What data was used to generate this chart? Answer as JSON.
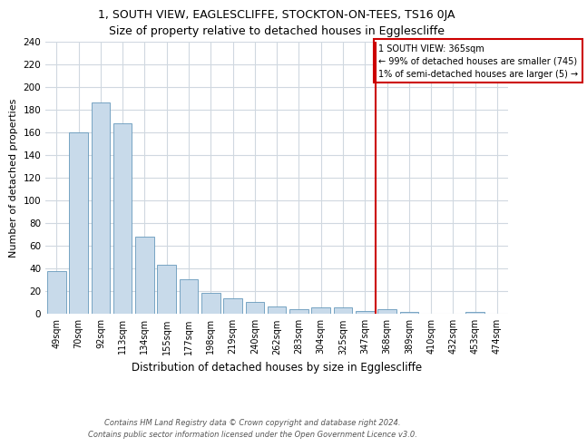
{
  "title1": "1, SOUTH VIEW, EAGLESCLIFFE, STOCKTON-ON-TEES, TS16 0JA",
  "title2": "Size of property relative to detached houses in Egglescliffe",
  "xlabel": "Distribution of detached houses by size in Egglescliffe",
  "ylabel": "Number of detached properties",
  "categories": [
    "49sqm",
    "70sqm",
    "92sqm",
    "113sqm",
    "134sqm",
    "155sqm",
    "177sqm",
    "198sqm",
    "219sqm",
    "240sqm",
    "262sqm",
    "283sqm",
    "304sqm",
    "325sqm",
    "347sqm",
    "368sqm",
    "389sqm",
    "410sqm",
    "432sqm",
    "453sqm",
    "474sqm"
  ],
  "values": [
    37,
    160,
    186,
    168,
    68,
    43,
    30,
    18,
    13,
    10,
    6,
    4,
    5,
    5,
    2,
    4,
    1,
    0,
    0,
    1,
    0
  ],
  "bar_color": "#c8daea",
  "bar_edge_color": "#6699bb",
  "vline_x_index": 15,
  "vline_color": "#cc0000",
  "annotation_text": "1 SOUTH VIEW: 365sqm\n← 99% of detached houses are smaller (745)\n1% of semi-detached houses are larger (5) →",
  "annotation_box_color": "#ffffff",
  "annotation_box_edge": "#cc0000",
  "ylim": [
    0,
    240
  ],
  "yticks": [
    0,
    20,
    40,
    60,
    80,
    100,
    120,
    140,
    160,
    180,
    200,
    220,
    240
  ],
  "footer1": "Contains HM Land Registry data © Crown copyright and database right 2024.",
  "footer2": "Contains public sector information licensed under the Open Government Licence v3.0.",
  "bg_color": "#ffffff",
  "plot_bg_color": "#ffffff",
  "grid_color": "#d0d8e0"
}
